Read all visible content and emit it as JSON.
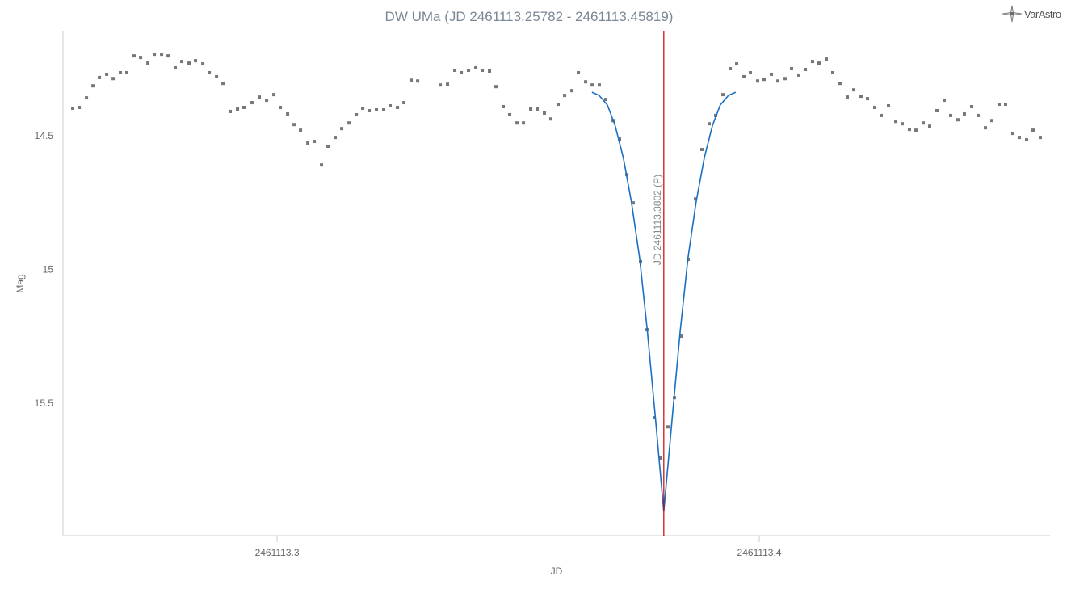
{
  "logo": {
    "text": "VarAstro",
    "icon": "compass-star-icon"
  },
  "chart_data": {
    "type": "scatter",
    "title": "DW UMa (JD 2461113.25782 - 2461113.45819)",
    "xlabel": "JD",
    "ylabel": "Mag",
    "xlim": [
      2461113.2556,
      2461113.4603
    ],
    "ylim": [
      14.107,
      15.995
    ],
    "y_reversed": true,
    "xticks": [
      {
        "value": 2461113.3,
        "label": "2461113.3"
      },
      {
        "value": 2461113.4,
        "label": "2461113.4"
      }
    ],
    "yticks": [
      {
        "value": 14.5,
        "label": "14.5"
      },
      {
        "value": 15,
        "label": "15"
      },
      {
        "value": 15.5,
        "label": "15.5"
      }
    ],
    "grid": false,
    "colors": {
      "points": "#777777",
      "model": "#1a6fc4",
      "minimum_line": "#cc0000",
      "title": "#7a8795",
      "axis": "#cccccc"
    },
    "observations": {
      "x": [
        2461113.25762,
        2461113.25896,
        2461113.26047,
        2461113.26181,
        2461113.26315,
        2461113.26466,
        2461113.266,
        2461113.2675,
        2461113.26884,
        2461113.27035,
        2461113.27169,
        2461113.2732,
        2461113.27454,
        2461113.27605,
        2461113.27739,
        2461113.27889,
        2461113.28023,
        2461113.28174,
        2461113.28308,
        2461113.28459,
        2461113.28593,
        2461113.28744,
        2461113.28878,
        2461113.29028,
        2461113.29179,
        2461113.29313,
        2461113.29481,
        2461113.29631,
        2461113.29782,
        2461113.29933,
        2461113.30067,
        2461113.30218,
        2461113.30352,
        2461113.30486,
        2461113.30637,
        2461113.30771,
        2461113.30921,
        2461113.31055,
        2461113.31206,
        2461113.3134,
        2461113.31491,
        2461113.31642,
        2461113.31776,
        2461113.3191,
        2461113.3206,
        2461113.32211,
        2461113.32345,
        2461113.32496,
        2461113.3263,
        2461113.32781,
        2461113.32915,
        2461113.33384,
        2461113.33534,
        2461113.33685,
        2461113.33819,
        2461113.3397,
        2461113.34121,
        2461113.34255,
        2461113.34405,
        2461113.34539,
        2461113.3469,
        2461113.34824,
        2461113.34975,
        2461113.35109,
        2461113.3526,
        2461113.35394,
        2461113.35544,
        2461113.35678,
        2461113.35829,
        2461113.35963,
        2461113.36114,
        2461113.36248,
        2461113.36399,
        2461113.36533,
        2461113.36683,
        2461113.36817,
        2461113.36968,
        2461113.37102,
        2461113.37253,
        2461113.37387,
        2461113.37538,
        2461113.37672,
        2461113.37822,
        2461113.37956,
        2461113.38107,
        2461113.38241,
        2461113.38392,
        2461113.38526,
        2461113.38677,
        2461113.38811,
        2461113.38961,
        2461113.39095,
        2461113.39246,
        2461113.39397,
        2461113.39531,
        2461113.39682,
        2461113.39816,
        2461113.39966,
        2461113.401,
        2461113.40251,
        2461113.40385,
        2461113.40536,
        2461113.4067,
        2461113.40821,
        2461113.40955,
        2461113.41105,
        2461113.41239,
        2461113.4139,
        2461113.41524,
        2461113.41675,
        2461113.41826,
        2461113.4196,
        2461113.4211,
        2461113.42244,
        2461113.42395,
        2461113.42529,
        2461113.4268,
        2461113.42831,
        2461113.42965,
        2461113.43115,
        2461113.43249,
        2461113.434,
        2461113.43534,
        2461113.43685,
        2461113.43836,
        2461113.4397,
        2461113.4412,
        2461113.44254,
        2461113.44405,
        2461113.44539,
        2461113.4469,
        2461113.44824,
        2461113.44975,
        2461113.45109,
        2461113.45259,
        2461113.45393,
        2461113.45544,
        2461113.45678,
        2461113.45829
      ],
      "y": [
        14.397,
        14.394,
        14.358,
        14.313,
        14.282,
        14.27,
        14.286,
        14.264,
        14.264,
        14.201,
        14.207,
        14.228,
        14.195,
        14.195,
        14.201,
        14.246,
        14.222,
        14.228,
        14.219,
        14.231,
        14.264,
        14.279,
        14.304,
        14.409,
        14.4,
        14.394,
        14.376,
        14.355,
        14.367,
        14.346,
        14.394,
        14.418,
        14.458,
        14.479,
        14.527,
        14.521,
        14.609,
        14.539,
        14.506,
        14.473,
        14.452,
        14.421,
        14.397,
        14.406,
        14.403,
        14.403,
        14.388,
        14.394,
        14.376,
        14.292,
        14.295,
        14.31,
        14.307,
        14.255,
        14.264,
        14.255,
        14.246,
        14.255,
        14.258,
        14.316,
        14.391,
        14.421,
        14.452,
        14.452,
        14.4,
        14.4,
        14.415,
        14.437,
        14.382,
        14.349,
        14.331,
        14.264,
        14.298,
        14.31,
        14.31,
        14.364,
        14.443,
        14.512,
        14.645,
        14.751,
        14.971,
        15.225,
        15.554,
        15.705,
        15.588,
        15.479,
        15.249,
        14.962,
        14.736,
        14.551,
        14.455,
        14.424,
        14.346,
        14.249,
        14.231,
        14.279,
        14.264,
        14.295,
        14.289,
        14.27,
        14.295,
        14.286,
        14.249,
        14.273,
        14.252,
        14.222,
        14.228,
        14.213,
        14.264,
        14.304,
        14.355,
        14.328,
        14.352,
        14.361,
        14.394,
        14.424,
        14.388,
        14.446,
        14.455,
        14.476,
        14.479,
        14.452,
        14.464,
        14.406,
        14.367,
        14.424,
        14.44,
        14.418,
        14.391,
        14.424,
        14.47,
        14.443,
        14.382,
        14.382,
        14.491,
        14.506,
        14.515,
        14.479,
        14.506
      ]
    },
    "model": {
      "x": [
        2461113.3653,
        2461113.3668,
        2461113.3685,
        2461113.3701,
        2461113.3718,
        2461113.3735,
        2461113.3752,
        2461113.3768,
        2461113.3785,
        2461113.3802,
        2461113.3819,
        2461113.3836,
        2461113.3852,
        2461113.3869,
        2461113.3886,
        2461113.3903,
        2461113.3919,
        2461113.3936,
        2461113.3951
      ],
      "y": [
        14.337,
        14.349,
        14.385,
        14.461,
        14.582,
        14.748,
        14.959,
        15.231,
        15.563,
        15.905,
        15.563,
        15.231,
        14.959,
        14.748,
        14.582,
        14.461,
        14.385,
        14.349,
        14.337
      ]
    },
    "minimum": {
      "x": 2461113.3802,
      "label": "JD 2461113.3802 (P)"
    }
  }
}
